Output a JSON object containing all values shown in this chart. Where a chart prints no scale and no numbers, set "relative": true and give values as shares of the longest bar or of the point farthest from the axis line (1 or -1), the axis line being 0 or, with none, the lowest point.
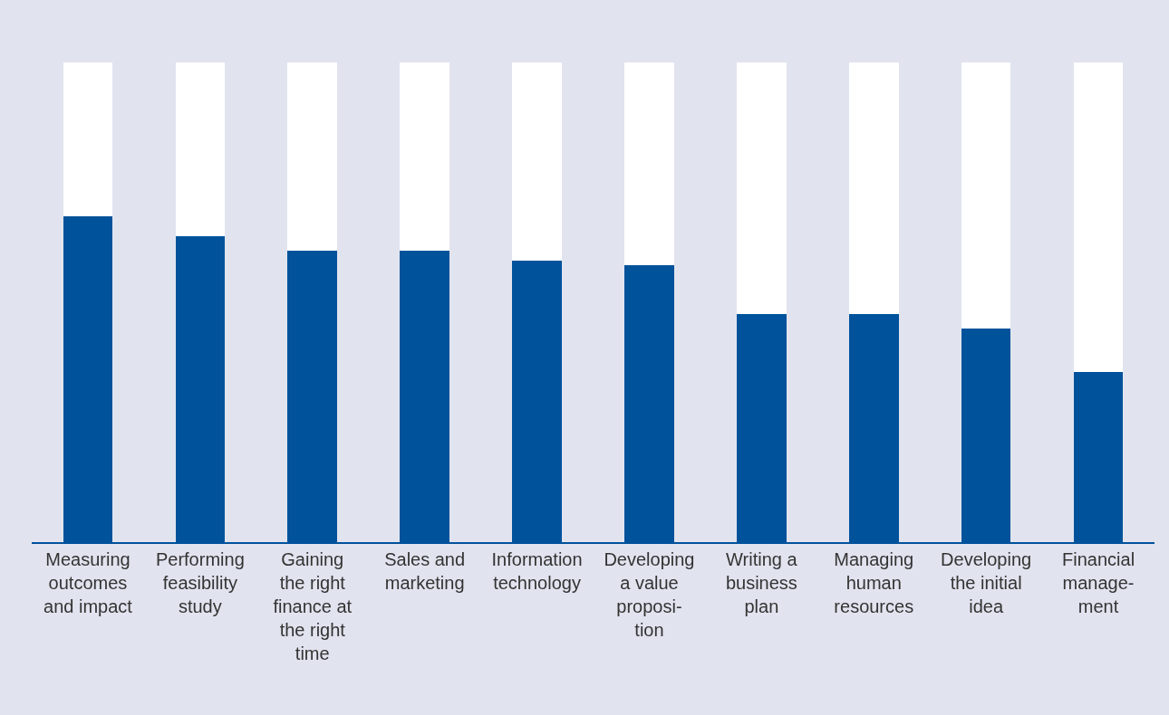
{
  "chart_data": {
    "type": "bar",
    "stacked": true,
    "relative": true,
    "tick_labels": "x",
    "categories": [
      "Measuring\noutcomes\nand impact",
      "Performing\nfeasibility\nstudy",
      "Gaining\nthe right\nfinance at\nthe right\ntime",
      "Sales and\nmarketing",
      "Information\ntechnology",
      "Developing\na value\nproposi-\ntion",
      "Writing a\nbusiness\nplan",
      "Managing\nhuman\nresources",
      "Developing\nthe initial\nidea",
      "Financial\nmanage-\nment"
    ],
    "series": [
      {
        "color": "#00529b",
        "values": [
          0.679,
          0.638,
          0.608,
          0.608,
          0.587,
          0.577,
          0.475,
          0.475,
          0.445,
          0.355
        ]
      },
      {
        "color": "#ffffff",
        "values": [
          0.321,
          0.362,
          0.392,
          0.392,
          0.413,
          0.423,
          0.525,
          0.525,
          0.555,
          0.645
        ]
      }
    ]
  }
}
